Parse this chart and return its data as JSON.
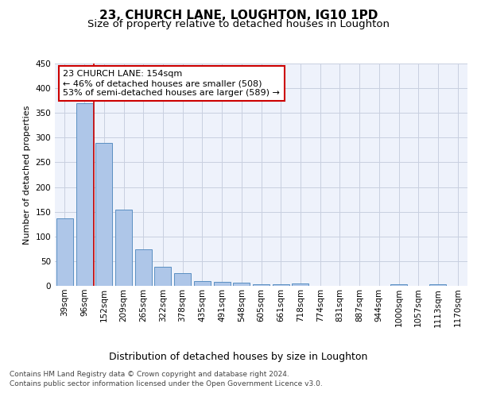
{
  "title1": "23, CHURCH LANE, LOUGHTON, IG10 1PD",
  "title2": "Size of property relative to detached houses in Loughton",
  "xlabel": "Distribution of detached houses by size in Loughton",
  "ylabel": "Number of detached properties",
  "bar_labels": [
    "39sqm",
    "96sqm",
    "152sqm",
    "209sqm",
    "265sqm",
    "322sqm",
    "378sqm",
    "435sqm",
    "491sqm",
    "548sqm",
    "605sqm",
    "661sqm",
    "718sqm",
    "774sqm",
    "831sqm",
    "887sqm",
    "944sqm",
    "1000sqm",
    "1057sqm",
    "1113sqm",
    "1170sqm"
  ],
  "bar_values": [
    137,
    370,
    289,
    155,
    74,
    38,
    25,
    10,
    8,
    6,
    4,
    4,
    5,
    0,
    0,
    0,
    0,
    4,
    0,
    4,
    0
  ],
  "bar_color": "#aec6e8",
  "bar_edge_color": "#5a8fc2",
  "vline_color": "#cc0000",
  "annotation_text": "23 CHURCH LANE: 154sqm\n← 46% of detached houses are smaller (508)\n53% of semi-detached houses are larger (589) →",
  "annotation_box_color": "#ffffff",
  "annotation_border_color": "#cc0000",
  "ylim": [
    0,
    450
  ],
  "yticks": [
    0,
    50,
    100,
    150,
    200,
    250,
    300,
    350,
    400,
    450
  ],
  "bg_color": "#eef2fb",
  "footer1": "Contains HM Land Registry data © Crown copyright and database right 2024.",
  "footer2": "Contains public sector information licensed under the Open Government Licence v3.0.",
  "title1_fontsize": 11,
  "title2_fontsize": 9.5,
  "xlabel_fontsize": 9,
  "ylabel_fontsize": 8,
  "tick_fontsize": 7.5,
  "annotation_fontsize": 8,
  "footer_fontsize": 6.5
}
